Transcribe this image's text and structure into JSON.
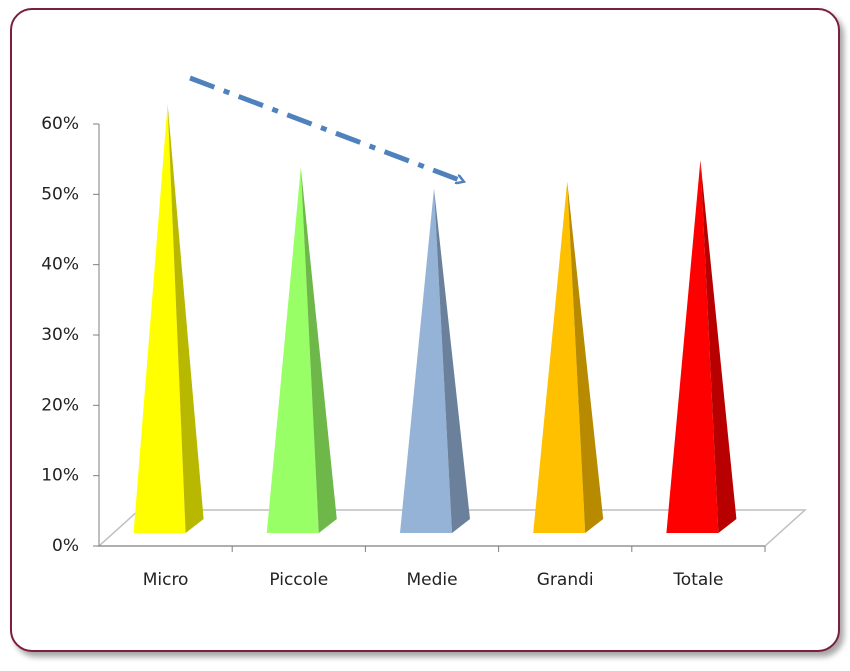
{
  "chart_data": {
    "type": "pyramid",
    "categories": [
      "Micro",
      "Piccole",
      "Medie",
      "Grandi",
      "Totale"
    ],
    "values": [
      61,
      52,
      49,
      50,
      53
    ],
    "colors": [
      "#ffff00",
      "#99ff66",
      "#95b3d7",
      "#ffc000",
      "#ff0000"
    ],
    "ylim": [
      0,
      60
    ],
    "yticks": [
      {
        "value": 0,
        "label": "0%"
      },
      {
        "value": 10,
        "label": "10%"
      },
      {
        "value": 20,
        "label": "20%"
      },
      {
        "value": 30,
        "label": "30%"
      },
      {
        "value": 40,
        "label": "40%"
      },
      {
        "value": 50,
        "label": "50%"
      },
      {
        "value": 60,
        "label": "60%"
      }
    ]
  }
}
